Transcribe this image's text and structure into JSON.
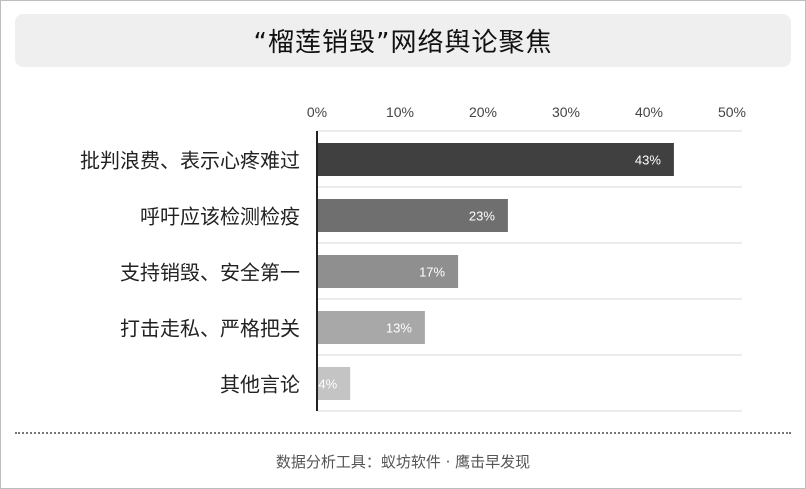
{
  "title": "“榴莲销毁”网络舆论聚焦",
  "footer": "数据分析工具：蚁坊软件 · 鹰击早发现",
  "chart_data": {
    "type": "bar",
    "orientation": "horizontal",
    "title": "“榴莲销毁”网络舆论聚焦",
    "categories": [
      "批判浪费、表示心疼难过",
      "呼吁应该检测检疫",
      "支持销毁、安全第一",
      "打击走私、严格把关",
      "其他言论"
    ],
    "values": [
      43,
      23,
      17,
      13,
      4
    ],
    "data_labels": [
      "43%",
      "23%",
      "17%",
      "13%",
      "4%"
    ],
    "xlim": [
      0,
      50
    ],
    "ticks": [
      0,
      10,
      20,
      30,
      40,
      50
    ],
    "tick_labels": [
      "0%",
      "10%",
      "20%",
      "30%",
      "40%",
      "50%"
    ],
    "axis_position": "top",
    "grid": true,
    "colors": [
      "#404040",
      "#6f6f6f",
      "#8f8f8f",
      "#a8a8a8",
      "#c4c4c4"
    ]
  }
}
